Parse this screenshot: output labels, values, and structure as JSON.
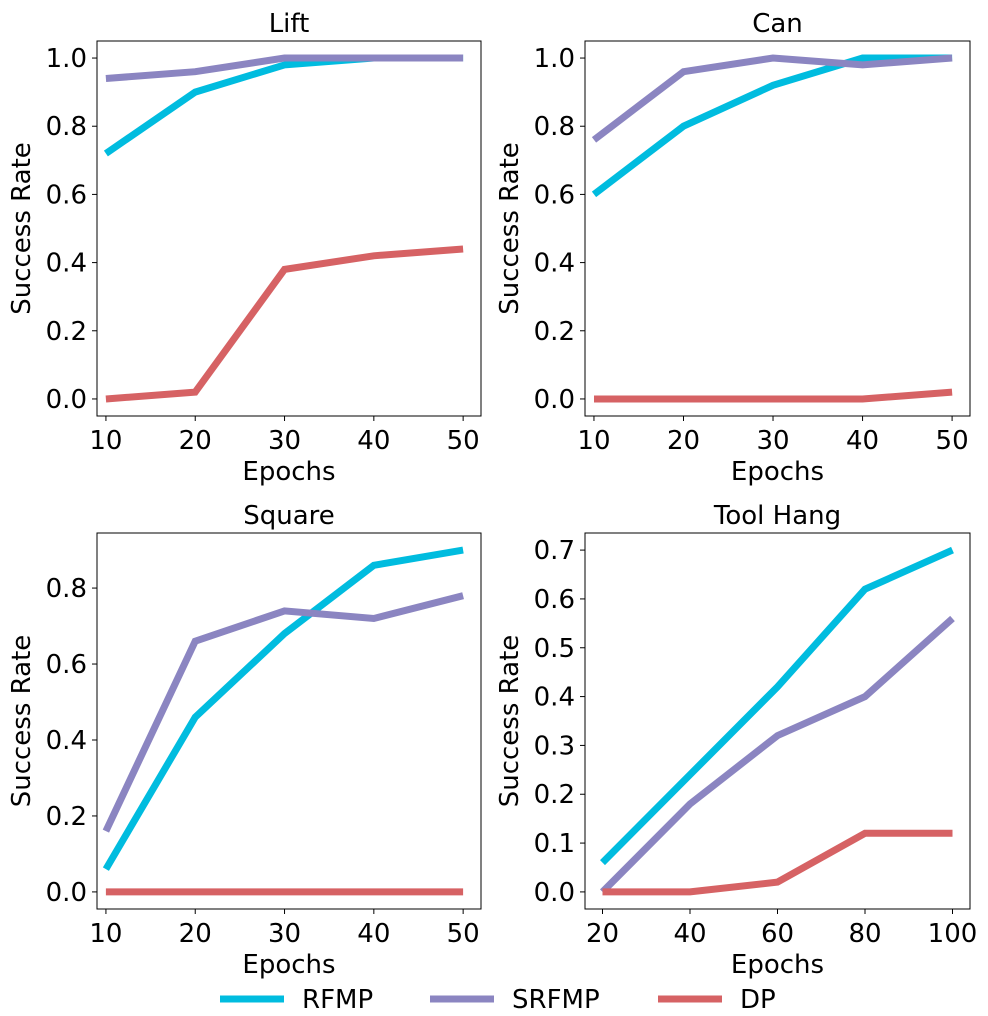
{
  "legend": [
    {
      "name": "RFMP",
      "color": "#00bcdf"
    },
    {
      "name": "SRFMP",
      "color": "#8b85c1"
    },
    {
      "name": "DP",
      "color": "#d66264"
    }
  ],
  "chart_data": [
    {
      "type": "line",
      "title": "Lift",
      "xlabel": "Epochs",
      "ylabel": "Success Rate",
      "x": [
        10,
        20,
        30,
        40,
        50
      ],
      "xticks": [
        "10",
        "20",
        "30",
        "40",
        "50"
      ],
      "yticks": [
        "0.0",
        "0.2",
        "0.4",
        "0.6",
        "0.8",
        "1.0"
      ],
      "xlim": [
        9,
        52
      ],
      "ylim": [
        -0.05,
        1.05
      ],
      "series": [
        {
          "name": "RFMP",
          "values": [
            0.72,
            0.9,
            0.98,
            1.0,
            1.0
          ]
        },
        {
          "name": "SRFMP",
          "values": [
            0.94,
            0.96,
            1.0,
            1.0,
            1.0
          ]
        },
        {
          "name": "DP",
          "values": [
            0.0,
            0.02,
            0.38,
            0.42,
            0.44
          ]
        }
      ]
    },
    {
      "type": "line",
      "title": "Can",
      "xlabel": "Epochs",
      "ylabel": "Success Rate",
      "x": [
        10,
        20,
        30,
        40,
        50
      ],
      "xticks": [
        "10",
        "20",
        "30",
        "40",
        "50"
      ],
      "yticks": [
        "0.0",
        "0.2",
        "0.4",
        "0.6",
        "0.8",
        "1.0"
      ],
      "xlim": [
        9,
        52
      ],
      "ylim": [
        -0.05,
        1.05
      ],
      "series": [
        {
          "name": "RFMP",
          "values": [
            0.6,
            0.8,
            0.92,
            1.0,
            1.0
          ]
        },
        {
          "name": "SRFMP",
          "values": [
            0.76,
            0.96,
            1.0,
            0.98,
            1.0
          ]
        },
        {
          "name": "DP",
          "values": [
            0.0,
            0.0,
            0.0,
            0.0,
            0.02
          ]
        }
      ]
    },
    {
      "type": "line",
      "title": "Square",
      "xlabel": "Epochs",
      "ylabel": "Success Rate",
      "x": [
        10,
        20,
        30,
        40,
        50
      ],
      "xticks": [
        "10",
        "20",
        "30",
        "40",
        "50"
      ],
      "yticks": [
        "0.0",
        "0.2",
        "0.4",
        "0.6",
        "0.8"
      ],
      "xlim": [
        9,
        52
      ],
      "ylim": [
        -0.045,
        0.945
      ],
      "series": [
        {
          "name": "RFMP",
          "values": [
            0.06,
            0.46,
            0.68,
            0.86,
            0.9
          ]
        },
        {
          "name": "SRFMP",
          "values": [
            0.16,
            0.66,
            0.74,
            0.72,
            0.78
          ]
        },
        {
          "name": "DP",
          "values": [
            0.0,
            0.0,
            0.0,
            0.0,
            0.0
          ]
        }
      ]
    },
    {
      "type": "line",
      "title": "Tool Hang",
      "xlabel": "Epochs",
      "ylabel": "Success Rate",
      "x": [
        20,
        40,
        60,
        80,
        100
      ],
      "xticks": [
        "20",
        "40",
        "60",
        "80",
        "100"
      ],
      "yticks": [
        "0.0",
        "0.1",
        "0.2",
        "0.3",
        "0.4",
        "0.5",
        "0.6",
        "0.7"
      ],
      "xlim": [
        16,
        104
      ],
      "ylim": [
        -0.035,
        0.735
      ],
      "series": [
        {
          "name": "RFMP",
          "values": [
            0.06,
            0.24,
            0.42,
            0.62,
            0.7
          ]
        },
        {
          "name": "SRFMP",
          "values": [
            0.0,
            0.18,
            0.32,
            0.4,
            0.56
          ]
        },
        {
          "name": "DP",
          "values": [
            0.0,
            0.0,
            0.02,
            0.12,
            0.12
          ]
        }
      ]
    }
  ]
}
